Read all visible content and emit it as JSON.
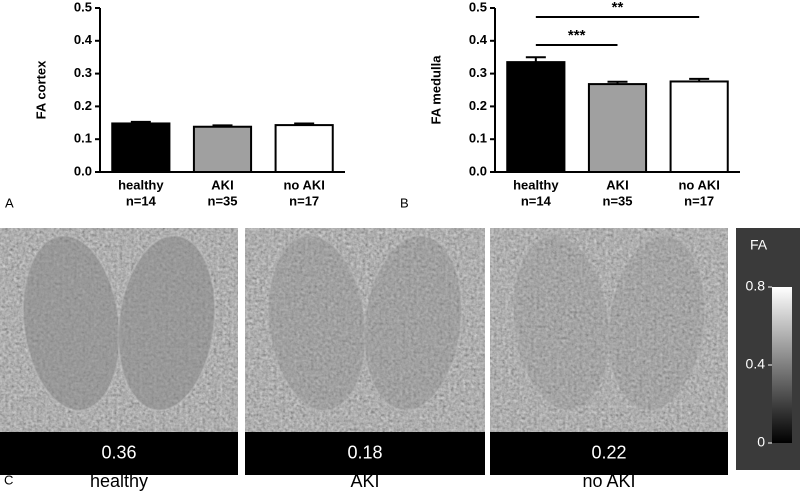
{
  "chart_data": [
    {
      "type": "bar",
      "panel": "A",
      "y_label": "FA cortex",
      "categories": [
        "healthy",
        "AKI",
        "no AKI"
      ],
      "sample_sizes": [
        "n=14",
        "n=35",
        "n=17"
      ],
      "values": [
        0.148,
        0.138,
        0.143
      ],
      "errors": [
        0.005,
        0.004,
        0.005
      ],
      "colors": [
        "#000000",
        "#a0a0a0",
        "#ffffff"
      ],
      "ylim": [
        0,
        0.5
      ],
      "yticks": [
        {
          "value": 0,
          "label": "0.0"
        },
        0.1,
        0.2,
        0.3,
        0.4,
        0.5
      ]
    },
    {
      "type": "bar",
      "panel": "B",
      "y_label": "FA medulla",
      "categories": [
        "healthy",
        "AKI",
        "no AKI"
      ],
      "sample_sizes": [
        "n=14",
        "n=35",
        "n=17"
      ],
      "values": [
        0.335,
        0.268,
        0.276
      ],
      "errors": [
        0.015,
        0.007,
        0.008
      ],
      "colors": [
        "#000000",
        "#a0a0a0",
        "#ffffff"
      ],
      "ylim": [
        0,
        0.5
      ],
      "yticks": [
        {
          "value": 0,
          "label": "0.0"
        },
        0.1,
        0.2,
        0.3,
        0.4,
        0.5
      ],
      "annotations": [
        {
          "label": "***",
          "from": 0,
          "to": 1
        },
        {
          "label": "**",
          "from": 0,
          "to": 2
        }
      ]
    }
  ],
  "images": {
    "panel": "C",
    "items": [
      {
        "label": "healthy",
        "value": "0.36"
      },
      {
        "label": "AKI",
        "value": "0.18"
      },
      {
        "label": "no AKI",
        "value": "0.22"
      }
    ]
  },
  "colorbar": {
    "label": "FA",
    "lim": [
      0,
      0.8
    ],
    "ticks": [
      0.8,
      0.4,
      0
    ]
  }
}
